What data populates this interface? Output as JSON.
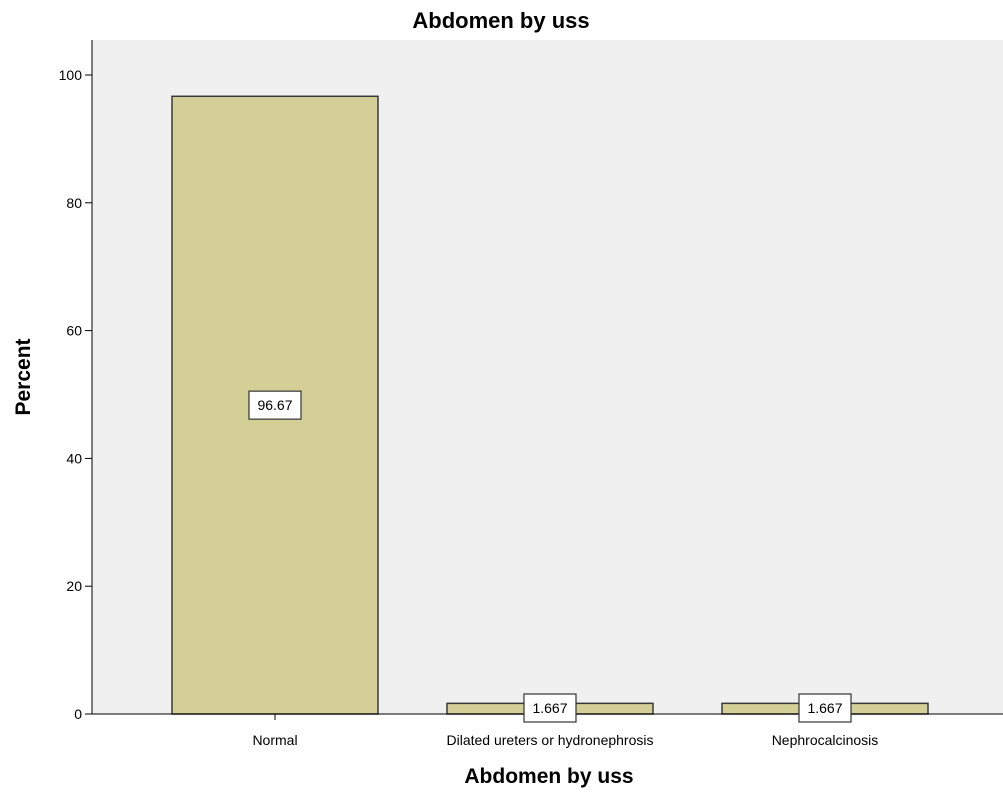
{
  "chart_data": {
    "type": "bar",
    "title": "Abdomen by uss",
    "xlabel": "Abdomen by uss",
    "ylabel": "Percent",
    "categories": [
      "Normal",
      "Dilated ureters or hydronephrosis",
      "Nephrocalcinosis"
    ],
    "values": [
      96.67,
      1.667,
      1.667
    ],
    "data_labels": [
      "96.67",
      "1.667",
      "1.667"
    ],
    "ylim": [
      0,
      100
    ],
    "yticks": [
      0,
      20,
      40,
      60,
      80,
      100
    ],
    "grid": false,
    "legend": "none",
    "colors": {
      "bar_fill": "#d3cf97",
      "bar_stroke": "#3a3a3a",
      "plot_background": "#f0f0f0",
      "label_box_fill": "#ffffff",
      "axis": "#000000"
    }
  }
}
